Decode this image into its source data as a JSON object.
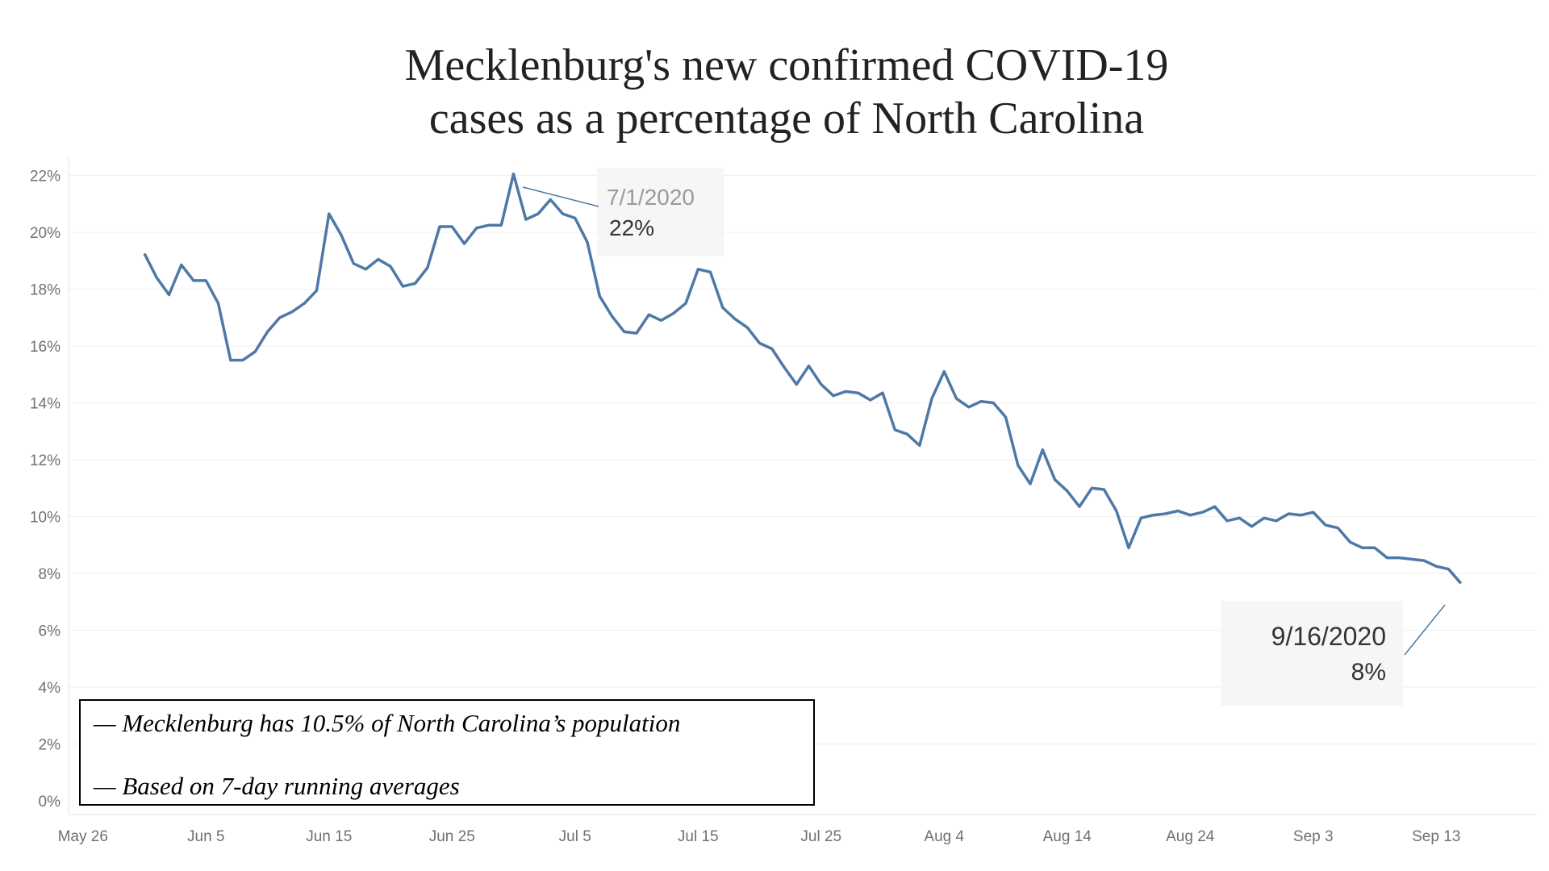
{
  "chart_data": {
    "type": "line",
    "title": "Mecklenburg's new confirmed COVID-19 cases as a percentage of North Carolina",
    "title_lines": [
      "Mecklenburg's new confirmed COVID-19",
      "cases as a percentage of North Carolina"
    ],
    "xlabel": "",
    "ylabel": "",
    "x_start": "2020-05-31",
    "x_end": "2020-09-16",
    "x_ticks": [
      "May 26",
      "Jun 5",
      "Jun 15",
      "Jun 25",
      "Jul 5",
      "Jul 15",
      "Jul 25",
      "Aug 4",
      "Aug 14",
      "Aug 24",
      "Sep 3",
      "Sep 13"
    ],
    "y_ticks": [
      "0%",
      "2%",
      "4%",
      "6%",
      "8%",
      "10%",
      "12%",
      "14%",
      "16%",
      "18%",
      "20%",
      "22%"
    ],
    "ylim": [
      0,
      22.5
    ],
    "grid": true,
    "line_color": "#4e79a7",
    "values": [
      19.25,
      18.4,
      17.8,
      18.85,
      18.3,
      18.3,
      17.5,
      15.5,
      15.5,
      15.8,
      16.5,
      17.0,
      17.2,
      17.5,
      17.95,
      20.65,
      19.9,
      18.9,
      18.7,
      19.05,
      18.8,
      18.1,
      18.2,
      18.75,
      20.2,
      20.2,
      19.6,
      20.15,
      20.25,
      20.25,
      22.05,
      20.45,
      20.65,
      21.15,
      20.65,
      20.5,
      19.65,
      17.75,
      17.05,
      16.5,
      16.45,
      17.1,
      16.9,
      17.15,
      17.5,
      18.7,
      18.6,
      17.35,
      16.95,
      16.65,
      16.1,
      15.9,
      15.25,
      14.65,
      15.3,
      14.65,
      14.25,
      14.4,
      14.35,
      14.1,
      14.35,
      13.05,
      12.9,
      12.5,
      14.15,
      15.1,
      14.15,
      13.85,
      14.05,
      14.0,
      13.5,
      11.8,
      11.15,
      12.35,
      11.3,
      10.9,
      10.35,
      11.0,
      10.95,
      10.2,
      8.9,
      9.95,
      10.05,
      10.1,
      10.2,
      10.05,
      10.15,
      10.35,
      9.85,
      9.95,
      9.65,
      9.95,
      9.85,
      10.1,
      10.05,
      10.15,
      9.7,
      9.6,
      9.1,
      8.9,
      8.9,
      8.55,
      8.55,
      8.5,
      8.45,
      8.25,
      8.15,
      7.65
    ],
    "annotations": [
      {
        "date": "7/1/2020",
        "value": "22%"
      },
      {
        "date": "9/16/2020",
        "value": "8%"
      }
    ]
  },
  "notes": [
    "— Mecklenburg has 10.5% of North Carolina’s population",
    "— Based on 7-day running averages"
  ]
}
